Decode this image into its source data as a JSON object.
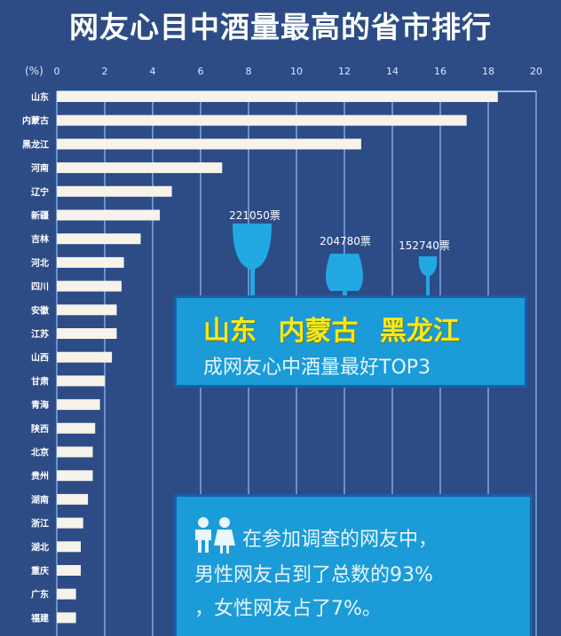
{
  "title": "网友心目中酒量最高的省市排行",
  "chart_data": {
    "type": "bar",
    "orientation": "horizontal",
    "title": "网友心目中酒量最高的省市排行",
    "unit_label": "(%)",
    "xlim": [
      0,
      20
    ],
    "xticks": [
      0,
      2,
      4,
      6,
      8,
      10,
      12,
      14,
      16,
      18,
      20
    ],
    "grid": true,
    "categories": [
      "山东",
      "内蒙古",
      "黑龙江",
      "河南",
      "辽宁",
      "新疆",
      "吉林",
      "河北",
      "四川",
      "安徽",
      "江苏",
      "山西",
      "甘肃",
      "青海",
      "陕西",
      "北京",
      "贵州",
      "湖南",
      "浙江",
      "湖北",
      "重庆",
      "广东",
      "福建"
    ],
    "values": [
      18.4,
      17.1,
      12.7,
      6.9,
      4.8,
      4.3,
      3.5,
      2.8,
      2.7,
      2.5,
      2.5,
      2.3,
      2.0,
      1.8,
      1.6,
      1.5,
      1.5,
      1.3,
      1.1,
      1.0,
      1.0,
      0.8,
      0.8
    ],
    "bar_color": "#f7f3ea",
    "annotations": [
      {
        "label": "221050票",
        "icon": "wine-glass-icon"
      },
      {
        "label": "204780票",
        "icon": "brandy-glass-icon"
      },
      {
        "label": "152740票",
        "icon": "small-glass-icon"
      }
    ]
  },
  "callout_top3": {
    "names": "山东 内蒙古 黑龙江",
    "subtitle": "成网友心中酒量最好TOP3"
  },
  "callout_gender": {
    "icon": "people-icon",
    "line1": "在参加调查的网友中，",
    "line2": "男性网友占到了总数的93%",
    "line3": "，女性网友占了7%。"
  },
  "colors": {
    "background": "#2d4c86",
    "accent": "#1b9bd7",
    "highlight": "#f5e81c",
    "glass": "#22a8e2"
  }
}
